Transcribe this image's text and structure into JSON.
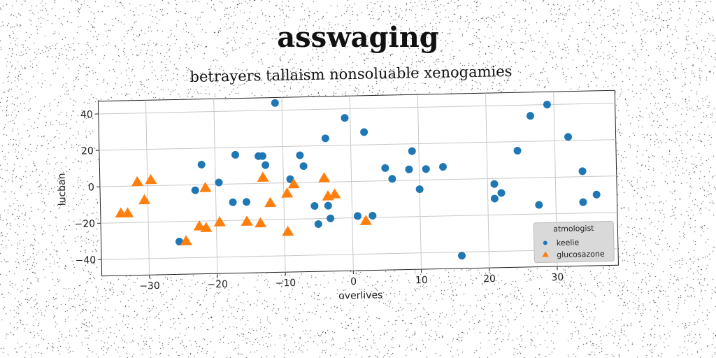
{
  "chart_data": {
    "type": "scatter",
    "title": "asswaging",
    "subtitle": "betrayers tallaism nonsoluable xenogamies",
    "xlabel": "overlives",
    "ylabel": "lucban",
    "xlim": [
      -37,
      39
    ],
    "ylim": [
      -49,
      47
    ],
    "xticks": [
      -30,
      -20,
      -10,
      0,
      10,
      20,
      30
    ],
    "yticks": [
      -40,
      -20,
      0,
      20,
      40
    ],
    "xtick_labels": [
      "−30",
      "−20",
      "−10",
      "0",
      "10",
      "20",
      "30"
    ],
    "ytick_labels": [
      "−40",
      "−20",
      "0",
      "20",
      "40"
    ],
    "grid": true,
    "legend": {
      "title": "atmologist",
      "placement": "bottom-right"
    },
    "series": [
      {
        "name": "keelie",
        "marker": "circle",
        "color": "#1f77b4",
        "points": [
          [
            -11,
            44
          ],
          [
            -0.8,
            35
          ],
          [
            2,
            27
          ],
          [
            -3.7,
            24
          ],
          [
            -17,
            16
          ],
          [
            -13.6,
            15
          ],
          [
            -13,
            15
          ],
          [
            -7.5,
            15
          ],
          [
            -12.6,
            10
          ],
          [
            -7,
            9
          ],
          [
            -22,
            11
          ],
          [
            -23,
            -3
          ],
          [
            -19.5,
            1
          ],
          [
            -9,
            2
          ],
          [
            -17.5,
            -10
          ],
          [
            -15.5,
            -10
          ],
          [
            -5.5,
            -13
          ],
          [
            -3.5,
            -13
          ],
          [
            -5,
            -23
          ],
          [
            -3.2,
            -20
          ],
          [
            0.8,
            -19
          ],
          [
            3,
            -19
          ],
          [
            5,
            7
          ],
          [
            6,
            1
          ],
          [
            8.5,
            6
          ],
          [
            9,
            16
          ],
          [
            10,
            -5
          ],
          [
            11,
            6
          ],
          [
            13.5,
            7
          ],
          [
            16,
            -42
          ],
          [
            21,
            -3
          ],
          [
            21,
            -11
          ],
          [
            22,
            -8
          ],
          [
            24.5,
            15
          ],
          [
            26.5,
            34
          ],
          [
            29,
            40
          ],
          [
            27.5,
            -15
          ],
          [
            32,
            22
          ],
          [
            34,
            3
          ],
          [
            34,
            -14
          ],
          [
            36,
            -10
          ],
          [
            -25.5,
            -31
          ]
        ]
      },
      {
        "name": "glucosazone",
        "marker": "triangle",
        "color": "#ff7f0e",
        "points": [
          [
            -31.5,
            2
          ],
          [
            -29.5,
            3
          ],
          [
            -30.5,
            -8
          ],
          [
            -34,
            -15
          ],
          [
            -33,
            -15
          ],
          [
            -24.5,
            -31
          ],
          [
            -22.5,
            -23
          ],
          [
            -21.5,
            -24
          ],
          [
            -21.5,
            -2
          ],
          [
            -19.5,
            -21
          ],
          [
            -15.5,
            -21
          ],
          [
            -13.5,
            -22
          ],
          [
            -13,
            3
          ],
          [
            -12,
            -11
          ],
          [
            -9.5,
            -6
          ],
          [
            -8.5,
            -1
          ],
          [
            -9.5,
            -27
          ],
          [
            -4,
            2
          ],
          [
            -3.5,
            -8
          ],
          [
            -2.5,
            -7
          ],
          [
            2,
            -22
          ]
        ]
      }
    ]
  }
}
